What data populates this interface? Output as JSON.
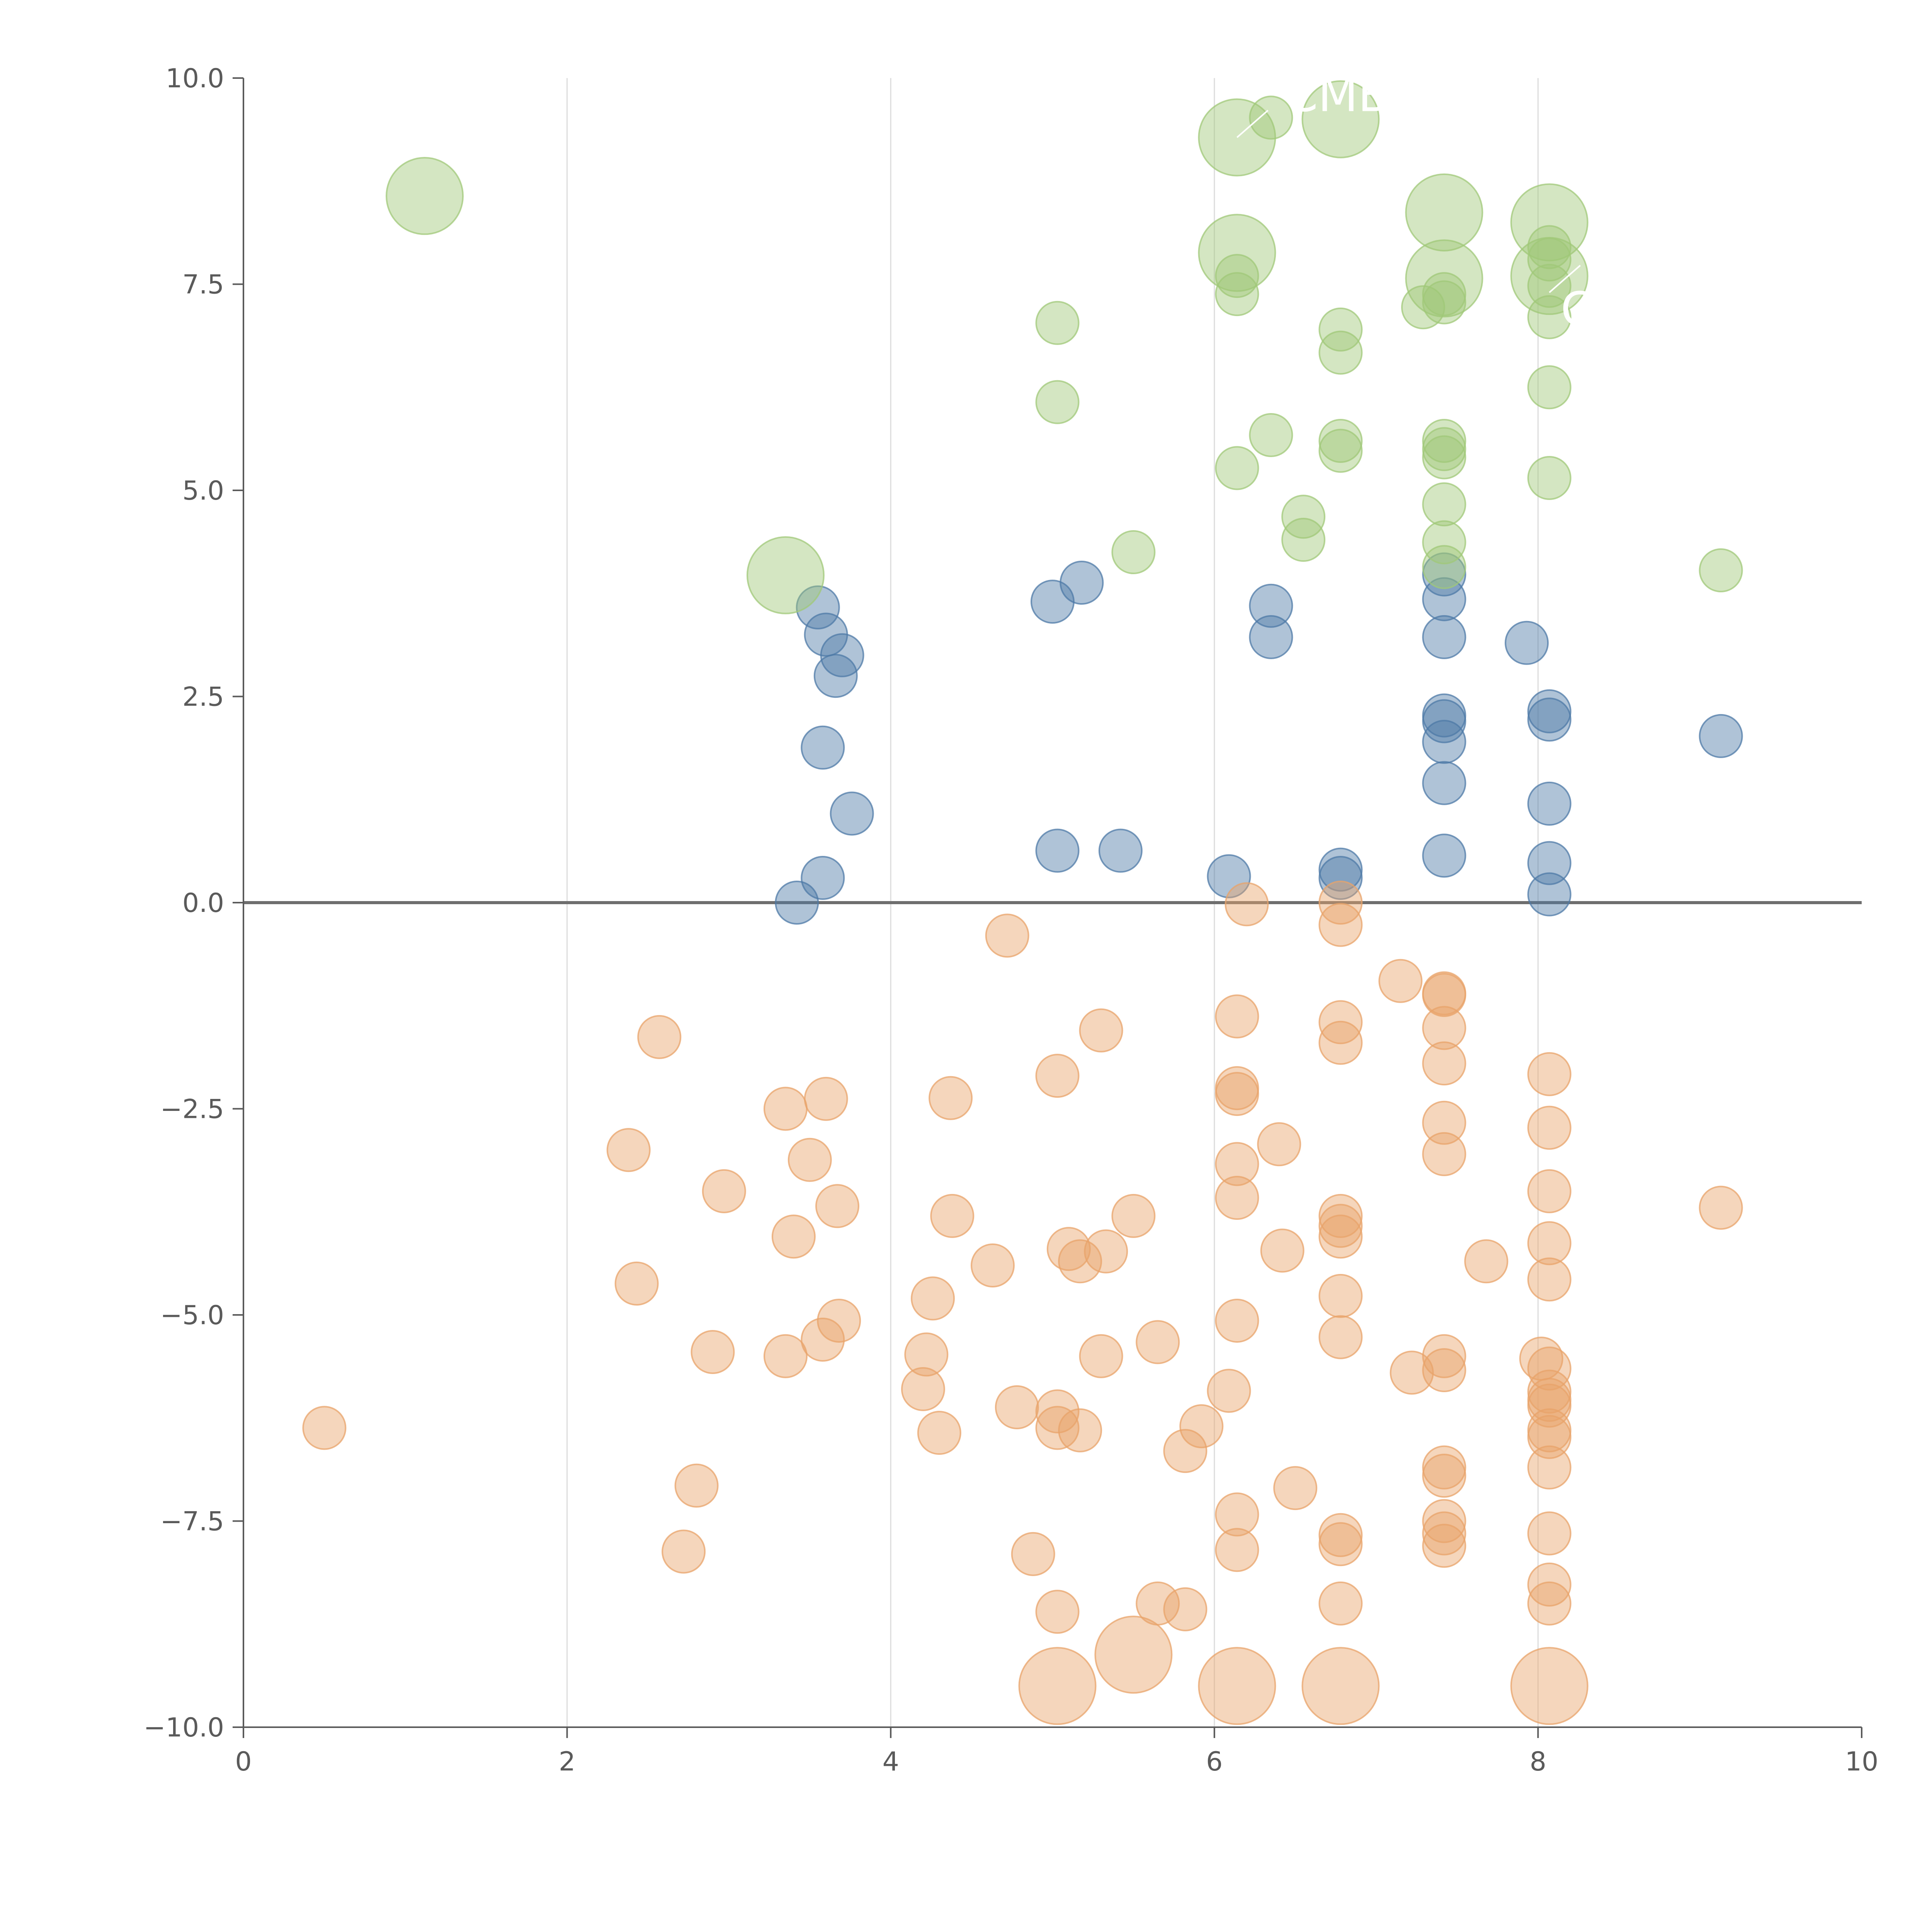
{
  "chart_data": {
    "type": "scatter",
    "title": "",
    "xlabel": "",
    "ylabel": "",
    "xlim": [
      0,
      10
    ],
    "ylim": [
      -10,
      10
    ],
    "x_ticks": [
      0,
      2,
      4,
      6,
      8,
      10
    ],
    "x_tick_labels": [
      "0",
      "2",
      "4",
      "6",
      "8",
      "10"
    ],
    "y_ticks": [
      -10,
      -7.5,
      -5,
      -2.5,
      0,
      2.5,
      5,
      7.5,
      10
    ],
    "y_tick_labels": [
      "−10.0",
      "−7.5",
      "−5.0",
      "−2.5",
      "0.0",
      "2.5",
      "5.0",
      "7.5",
      "10.0"
    ],
    "vertical_grid_at_x": [
      2,
      4,
      6,
      8
    ],
    "horizontal_reference_line_y": 0,
    "legend": "none",
    "series": [
      {
        "color": "#4e79a7",
        "points": [
          {
            "x": 3.42,
            "y": 0.0,
            "r": 1
          },
          {
            "x": 3.58,
            "y": 0.3,
            "r": 1
          },
          {
            "x": 3.58,
            "y": 1.88,
            "r": 1
          },
          {
            "x": 3.76,
            "y": 1.08,
            "r": 1
          },
          {
            "x": 3.66,
            "y": 2.75,
            "r": 1
          },
          {
            "x": 3.7,
            "y": 3.0,
            "r": 1
          },
          {
            "x": 3.6,
            "y": 3.25,
            "r": 1
          },
          {
            "x": 3.55,
            "y": 3.58,
            "r": 1
          },
          {
            "x": 5.03,
            "y": 0.63,
            "r": 1
          },
          {
            "x": 5.42,
            "y": 0.63,
            "r": 1
          },
          {
            "x": 5.0,
            "y": 3.65,
            "r": 1
          },
          {
            "x": 5.18,
            "y": 3.88,
            "r": 1
          },
          {
            "x": 6.09,
            "y": 0.32,
            "r": 1
          },
          {
            "x": 6.35,
            "y": 3.22,
            "r": 1
          },
          {
            "x": 6.35,
            "y": 3.6,
            "r": 1
          },
          {
            "x": 6.78,
            "y": 0.3,
            "r": 1
          },
          {
            "x": 6.78,
            "y": 0.4,
            "r": 1
          },
          {
            "x": 7.42,
            "y": 0.57,
            "r": 1
          },
          {
            "x": 7.42,
            "y": 1.45,
            "r": 1
          },
          {
            "x": 7.42,
            "y": 1.95,
            "r": 1
          },
          {
            "x": 7.42,
            "y": 2.2,
            "r": 1
          },
          {
            "x": 7.42,
            "y": 2.27,
            "r": 1
          },
          {
            "x": 7.42,
            "y": 3.22,
            "r": 1
          },
          {
            "x": 7.42,
            "y": 3.68,
            "r": 1
          },
          {
            "x": 7.42,
            "y": 3.98,
            "r": 1
          },
          {
            "x": 7.93,
            "y": 3.15,
            "r": 1
          },
          {
            "x": 8.07,
            "y": 0.1,
            "r": 1
          },
          {
            "x": 8.07,
            "y": 0.48,
            "r": 1
          },
          {
            "x": 8.07,
            "y": 1.2,
            "r": 1
          },
          {
            "x": 8.07,
            "y": 2.22,
            "r": 1
          },
          {
            "x": 8.07,
            "y": 2.32,
            "r": 1
          },
          {
            "x": 9.13,
            "y": 2.02,
            "r": 1
          }
        ]
      },
      {
        "color": "#a0c878",
        "points": [
          {
            "x": 1.12,
            "y": 8.57,
            "r": 1.8
          },
          {
            "x": 3.35,
            "y": 3.97,
            "r": 1.8
          },
          {
            "x": 5.03,
            "y": 7.03,
            "r": 1
          },
          {
            "x": 5.03,
            "y": 6.07,
            "r": 1
          },
          {
            "x": 5.5,
            "y": 4.25,
            "r": 1
          },
          {
            "x": 6.14,
            "y": 9.28,
            "r": 1.8
          },
          {
            "x": 6.14,
            "y": 7.88,
            "r": 1.8
          },
          {
            "x": 6.14,
            "y": 7.6,
            "r": 1
          },
          {
            "x": 6.14,
            "y": 7.38,
            "r": 1
          },
          {
            "x": 6.14,
            "y": 5.27,
            "r": 1
          },
          {
            "x": 6.35,
            "y": 9.52,
            "r": 1
          },
          {
            "x": 6.35,
            "y": 5.67,
            "r": 1
          },
          {
            "x": 6.55,
            "y": 4.68,
            "r": 1
          },
          {
            "x": 6.55,
            "y": 4.4,
            "r": 1
          },
          {
            "x": 6.78,
            "y": 9.5,
            "r": 1.8
          },
          {
            "x": 6.78,
            "y": 6.95,
            "r": 1
          },
          {
            "x": 6.78,
            "y": 6.67,
            "r": 1
          },
          {
            "x": 6.78,
            "y": 5.6,
            "r": 1
          },
          {
            "x": 6.78,
            "y": 5.48,
            "r": 1
          },
          {
            "x": 7.29,
            "y": 7.22,
            "r": 1
          },
          {
            "x": 7.42,
            "y": 8.37,
            "r": 1.8
          },
          {
            "x": 7.42,
            "y": 7.57,
            "r": 1.8
          },
          {
            "x": 7.42,
            "y": 7.38,
            "r": 1
          },
          {
            "x": 7.42,
            "y": 7.28,
            "r": 1
          },
          {
            "x": 7.42,
            "y": 5.6,
            "r": 1
          },
          {
            "x": 7.42,
            "y": 5.5,
            "r": 1
          },
          {
            "x": 7.42,
            "y": 5.4,
            "r": 1
          },
          {
            "x": 7.42,
            "y": 4.83,
            "r": 1
          },
          {
            "x": 7.42,
            "y": 4.37,
            "r": 1
          },
          {
            "x": 7.42,
            "y": 4.07,
            "r": 1
          },
          {
            "x": 8.07,
            "y": 8.25,
            "r": 1.8
          },
          {
            "x": 8.07,
            "y": 7.6,
            "r": 1.8
          },
          {
            "x": 8.07,
            "y": 7.95,
            "r": 1
          },
          {
            "x": 8.07,
            "y": 7.8,
            "r": 1
          },
          {
            "x": 8.07,
            "y": 7.48,
            "r": 1
          },
          {
            "x": 8.07,
            "y": 7.1,
            "r": 1
          },
          {
            "x": 8.07,
            "y": 6.25,
            "r": 1
          },
          {
            "x": 8.07,
            "y": 5.15,
            "r": 1
          },
          {
            "x": 9.13,
            "y": 4.03,
            "r": 1
          }
        ]
      },
      {
        "color": "#e8a36a",
        "points": [
          {
            "x": 0.5,
            "y": -6.37,
            "r": 1
          },
          {
            "x": 2.38,
            "y": -3.0,
            "r": 1
          },
          {
            "x": 2.43,
            "y": -4.62,
            "r": 1
          },
          {
            "x": 2.57,
            "y": -1.63,
            "r": 1
          },
          {
            "x": 2.72,
            "y": -7.87,
            "r": 1
          },
          {
            "x": 2.8,
            "y": -7.07,
            "r": 1
          },
          {
            "x": 2.9,
            "y": -5.45,
            "r": 1
          },
          {
            "x": 2.97,
            "y": -3.5,
            "r": 1
          },
          {
            "x": 3.35,
            "y": -2.5,
            "r": 1
          },
          {
            "x": 3.35,
            "y": -5.5,
            "r": 1
          },
          {
            "x": 3.4,
            "y": -4.05,
            "r": 1
          },
          {
            "x": 3.5,
            "y": -3.12,
            "r": 1
          },
          {
            "x": 3.58,
            "y": -5.3,
            "r": 1
          },
          {
            "x": 3.6,
            "y": -2.38,
            "r": 1
          },
          {
            "x": 3.67,
            "y": -3.68,
            "r": 1
          },
          {
            "x": 3.68,
            "y": -5.07,
            "r": 1
          },
          {
            "x": 4.2,
            "y": -5.9,
            "r": 1
          },
          {
            "x": 4.22,
            "y": -5.48,
            "r": 1
          },
          {
            "x": 4.26,
            "y": -4.8,
            "r": 1
          },
          {
            "x": 4.3,
            "y": -6.43,
            "r": 1
          },
          {
            "x": 4.37,
            "y": -2.37,
            "r": 1
          },
          {
            "x": 4.38,
            "y": -3.8,
            "r": 1
          },
          {
            "x": 4.63,
            "y": -4.4,
            "r": 1
          },
          {
            "x": 4.72,
            "y": -0.4,
            "r": 1
          },
          {
            "x": 4.78,
            "y": -6.12,
            "r": 1
          },
          {
            "x": 4.88,
            "y": -7.9,
            "r": 1
          },
          {
            "x": 5.03,
            "y": -2.1,
            "r": 1
          },
          {
            "x": 5.03,
            "y": -6.17,
            "r": 1
          },
          {
            "x": 5.03,
            "y": -6.37,
            "r": 1
          },
          {
            "x": 5.03,
            "y": -8.6,
            "r": 1
          },
          {
            "x": 5.03,
            "y": -9.5,
            "r": 1.8
          },
          {
            "x": 5.1,
            "y": -4.2,
            "r": 1
          },
          {
            "x": 5.17,
            "y": -4.35,
            "r": 1
          },
          {
            "x": 5.17,
            "y": -6.4,
            "r": 1
          },
          {
            "x": 5.3,
            "y": -1.55,
            "r": 1
          },
          {
            "x": 5.3,
            "y": -5.5,
            "r": 1
          },
          {
            "x": 5.33,
            "y": -4.23,
            "r": 1
          },
          {
            "x": 5.5,
            "y": -3.8,
            "r": 1
          },
          {
            "x": 5.5,
            "y": -9.12,
            "r": 1.8
          },
          {
            "x": 5.65,
            "y": -5.33,
            "r": 1
          },
          {
            "x": 5.65,
            "y": -8.5,
            "r": 1
          },
          {
            "x": 5.82,
            "y": -6.65,
            "r": 1
          },
          {
            "x": 5.82,
            "y": -8.57,
            "r": 1
          },
          {
            "x": 5.92,
            "y": -6.35,
            "r": 1
          },
          {
            "x": 6.09,
            "y": -5.92,
            "r": 1
          },
          {
            "x": 6.14,
            "y": -1.38,
            "r": 1
          },
          {
            "x": 6.14,
            "y": -2.25,
            "r": 1
          },
          {
            "x": 6.14,
            "y": -2.32,
            "r": 1
          },
          {
            "x": 6.14,
            "y": -3.17,
            "r": 1
          },
          {
            "x": 6.14,
            "y": -3.58,
            "r": 1
          },
          {
            "x": 6.14,
            "y": -5.07,
            "r": 1
          },
          {
            "x": 6.14,
            "y": -7.42,
            "r": 1
          },
          {
            "x": 6.14,
            "y": -7.85,
            "r": 1
          },
          {
            "x": 6.14,
            "y": -9.5,
            "r": 1.8
          },
          {
            "x": 6.2,
            "y": -0.02,
            "r": 1
          },
          {
            "x": 6.4,
            "y": -2.93,
            "r": 1
          },
          {
            "x": 6.42,
            "y": -4.22,
            "r": 1
          },
          {
            "x": 6.5,
            "y": -7.1,
            "r": 1
          },
          {
            "x": 6.78,
            "y": 0.0,
            "r": 1
          },
          {
            "x": 6.78,
            "y": -0.27,
            "r": 1
          },
          {
            "x": 6.78,
            "y": -1.45,
            "r": 1
          },
          {
            "x": 6.78,
            "y": -1.7,
            "r": 1
          },
          {
            "x": 6.78,
            "y": -3.8,
            "r": 1
          },
          {
            "x": 6.78,
            "y": -3.92,
            "r": 1
          },
          {
            "x": 6.78,
            "y": -4.05,
            "r": 1
          },
          {
            "x": 6.78,
            "y": -4.77,
            "r": 1
          },
          {
            "x": 6.78,
            "y": -5.27,
            "r": 1
          },
          {
            "x": 6.78,
            "y": -7.67,
            "r": 1
          },
          {
            "x": 6.78,
            "y": -7.78,
            "r": 1
          },
          {
            "x": 6.78,
            "y": -8.5,
            "r": 1
          },
          {
            "x": 6.78,
            "y": -9.5,
            "r": 1.8
          },
          {
            "x": 7.15,
            "y": -0.95,
            "r": 1
          },
          {
            "x": 7.22,
            "y": -5.7,
            "r": 1
          },
          {
            "x": 7.42,
            "y": -1.1,
            "r": 1
          },
          {
            "x": 7.42,
            "y": -1.12,
            "r": 1
          },
          {
            "x": 7.42,
            "y": -1.52,
            "r": 1
          },
          {
            "x": 7.42,
            "y": -1.95,
            "r": 1
          },
          {
            "x": 7.42,
            "y": -2.67,
            "r": 1
          },
          {
            "x": 7.42,
            "y": -3.05,
            "r": 1
          },
          {
            "x": 7.42,
            "y": -5.5,
            "r": 1
          },
          {
            "x": 7.42,
            "y": -5.67,
            "r": 1
          },
          {
            "x": 7.42,
            "y": -6.85,
            "r": 1
          },
          {
            "x": 7.42,
            "y": -6.95,
            "r": 1
          },
          {
            "x": 7.42,
            "y": -7.5,
            "r": 1
          },
          {
            "x": 7.42,
            "y": -7.65,
            "r": 1
          },
          {
            "x": 7.42,
            "y": -7.8,
            "r": 1
          },
          {
            "x": 7.68,
            "y": -4.35,
            "r": 1
          },
          {
            "x": 8.02,
            "y": -5.53,
            "r": 1
          },
          {
            "x": 8.07,
            "y": -2.08,
            "r": 1
          },
          {
            "x": 8.07,
            "y": -2.73,
            "r": 1
          },
          {
            "x": 8.07,
            "y": -3.5,
            "r": 1
          },
          {
            "x": 8.07,
            "y": -4.13,
            "r": 1
          },
          {
            "x": 8.07,
            "y": -4.57,
            "r": 1
          },
          {
            "x": 8.07,
            "y": -5.65,
            "r": 1
          },
          {
            "x": 8.07,
            "y": -5.93,
            "r": 1
          },
          {
            "x": 8.07,
            "y": -6.03,
            "r": 1
          },
          {
            "x": 8.07,
            "y": -6.1,
            "r": 1
          },
          {
            "x": 8.07,
            "y": -6.4,
            "r": 1
          },
          {
            "x": 8.07,
            "y": -6.48,
            "r": 1
          },
          {
            "x": 8.07,
            "y": -6.85,
            "r": 1
          },
          {
            "x": 8.07,
            "y": -7.65,
            "r": 1
          },
          {
            "x": 8.07,
            "y": -8.27,
            "r": 1
          },
          {
            "x": 8.07,
            "y": -8.5,
            "r": 1
          },
          {
            "x": 8.07,
            "y": -9.5,
            "r": 1.8
          },
          {
            "x": 9.13,
            "y": -3.7,
            "r": 1
          }
        ]
      }
    ],
    "annotations": [
      {
        "text": "CMB",
        "x": 6.44,
        "y": 9.6,
        "px": 6.14,
        "py": 9.28,
        "dir": "left"
      },
      {
        "text": "CA",
        "x": 8.14,
        "y": 7.0,
        "px": 8.07,
        "py": 7.4,
        "dir": "left"
      }
    ]
  }
}
